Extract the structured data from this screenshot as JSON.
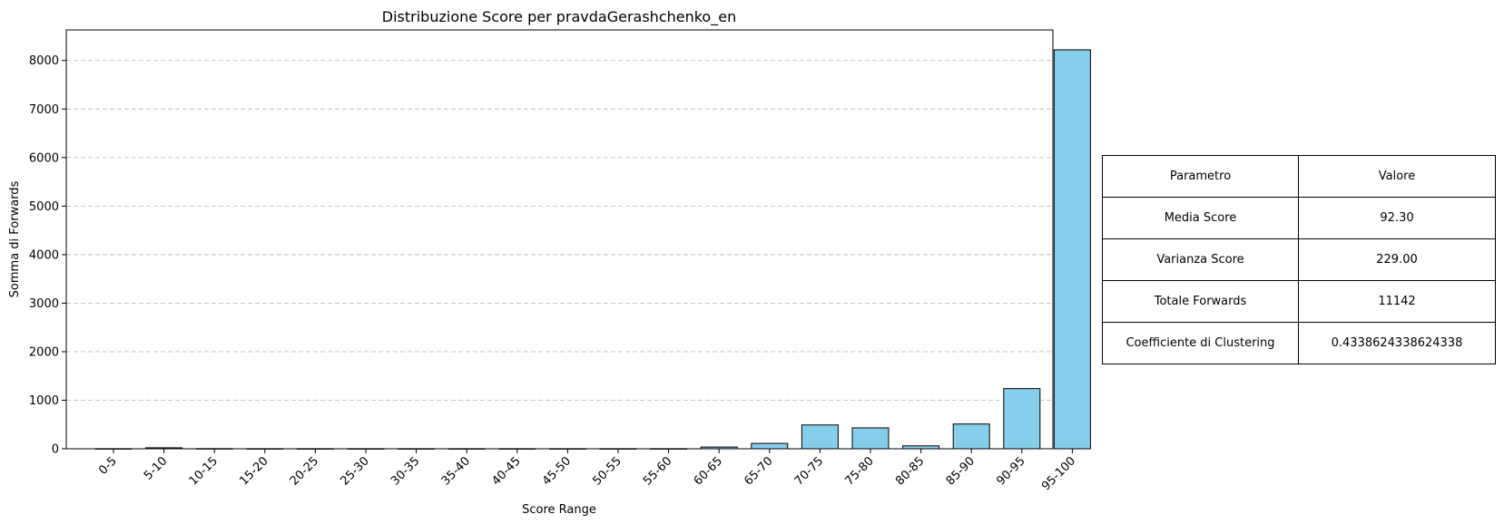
{
  "chart_data": {
    "type": "bar",
    "title": "Distribuzione Score per pravdaGerashchenko_en",
    "xlabel": "Score Range",
    "ylabel": "Somma di Forwards",
    "categories": [
      "0-5",
      "5-10",
      "10-15",
      "15-20",
      "20-25",
      "25-30",
      "30-35",
      "35-40",
      "40-45",
      "45-50",
      "50-55",
      "55-60",
      "60-65",
      "65-70",
      "70-75",
      "75-80",
      "80-85",
      "85-90",
      "90-95",
      "95-100"
    ],
    "values": [
      2,
      20,
      3,
      2,
      2,
      2,
      2,
      2,
      2,
      2,
      2,
      2,
      35,
      110,
      490,
      430,
      60,
      510,
      1240,
      8220
    ],
    "ylim": [
      0,
      8630
    ],
    "yticks": [
      0,
      1000,
      2000,
      3000,
      4000,
      5000,
      6000,
      7000,
      8000
    ],
    "grid": "y-dashed",
    "bar_color": "#87ceeb",
    "edge_color": "#000000"
  },
  "table": {
    "header": [
      "Parametro",
      "Valore"
    ],
    "rows": [
      [
        "Media Score",
        "92.30"
      ],
      [
        "Varianza Score",
        "229.00"
      ],
      [
        "Totale Forwards",
        "11142"
      ],
      [
        "Coefficiente di Clustering",
        "0.4338624338624338"
      ]
    ]
  }
}
